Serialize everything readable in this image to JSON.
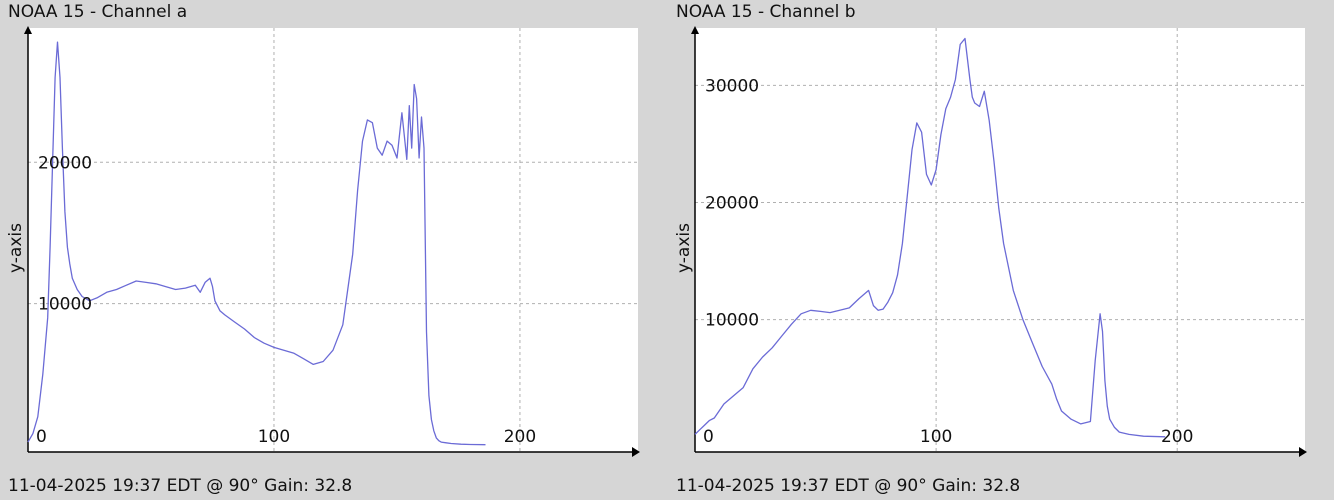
{
  "colors": {
    "background": "#d6d6d6",
    "plot_bg": "#ffffff",
    "line": "#6b6bd6",
    "grid": "#b0b0b0",
    "axis": "#000000"
  },
  "chart_data": [
    {
      "type": "line",
      "title": "NOAA 15 - Channel a",
      "xlabel": "",
      "ylabel": "y-axis",
      "footer": "11-04-2025 19:37 EDT @ 90° Gain: 32.8",
      "xlim": [
        0,
        248
      ],
      "ylim": [
        -500,
        29500
      ],
      "xticks": [
        0,
        100,
        200
      ],
      "yticks": [
        10000,
        20000
      ],
      "grid": true,
      "series": [
        {
          "x": [
            0,
            2,
            4,
            6,
            8,
            9,
            10,
            11,
            12,
            13,
            14,
            15,
            16,
            17,
            18,
            20,
            22,
            25,
            28,
            32,
            36,
            40,
            44,
            48,
            52,
            56,
            60,
            64,
            68,
            70,
            72,
            74,
            75,
            76,
            78,
            80,
            84,
            88,
            92,
            96,
            100,
            104,
            108,
            112,
            116,
            120,
            124,
            128,
            132,
            134,
            136,
            138,
            140,
            142,
            144,
            146,
            148,
            150,
            152,
            154,
            155,
            156,
            157,
            158,
            159,
            160,
            161,
            162,
            163,
            164,
            165,
            166,
            167,
            168,
            170,
            172,
            176,
            180,
            186
          ],
          "y": [
            200,
            800,
            2000,
            5000,
            9000,
            14000,
            20000,
            26000,
            28500,
            26000,
            21000,
            16500,
            14000,
            12800,
            11800,
            11000,
            10500,
            10200,
            10400,
            10800,
            11000,
            11300,
            11600,
            11500,
            11400,
            11200,
            11000,
            11100,
            11300,
            10800,
            11500,
            11800,
            11200,
            10200,
            9500,
            9200,
            8700,
            8200,
            7600,
            7200,
            6900,
            6700,
            6500,
            6100,
            5700,
            5900,
            6700,
            8500,
            13500,
            18000,
            21500,
            23000,
            22800,
            21000,
            20500,
            21500,
            21200,
            20300,
            23500,
            20200,
            24000,
            21000,
            25500,
            24500,
            20300,
            23200,
            21000,
            8000,
            3500,
            1800,
            1000,
            500,
            300,
            200,
            150,
            100,
            50,
            30,
            20
          ]
        }
      ]
    },
    {
      "type": "line",
      "title": "NOAA 15 - Channel b",
      "xlabel": "",
      "ylabel": "y-axis",
      "footer": "11-04-2025 19:37 EDT @ 90° Gain: 32.8",
      "xlim": [
        0,
        253
      ],
      "ylim": [
        -1300,
        34900
      ],
      "xticks": [
        0,
        100,
        200
      ],
      "yticks": [
        10000,
        20000,
        30000
      ],
      "grid": true,
      "series": [
        {
          "x": [
            0,
            2,
            4,
            6,
            8,
            10,
            12,
            16,
            20,
            24,
            28,
            32,
            36,
            40,
            44,
            48,
            52,
            56,
            60,
            64,
            68,
            72,
            74,
            76,
            78,
            80,
            82,
            84,
            86,
            88,
            90,
            92,
            94,
            96,
            98,
            100,
            102,
            104,
            106,
            108,
            110,
            112,
            114,
            115,
            116,
            118,
            120,
            122,
            124,
            126,
            128,
            132,
            136,
            140,
            144,
            148,
            150,
            152,
            156,
            160,
            164,
            166,
            168,
            169,
            170,
            171,
            172,
            174,
            176,
            180,
            186,
            195
          ],
          "y": [
            200,
            600,
            1000,
            1400,
            1600,
            2200,
            2800,
            3500,
            4200,
            5800,
            6800,
            7600,
            8600,
            9600,
            10500,
            10800,
            10700,
            10600,
            10800,
            11000,
            11800,
            12500,
            11200,
            10800,
            10900,
            11500,
            12300,
            13800,
            16500,
            20500,
            24500,
            26800,
            26000,
            22400,
            21500,
            22800,
            25800,
            28000,
            29000,
            30500,
            33500,
            34000,
            30500,
            29000,
            28500,
            28200,
            29500,
            27000,
            23500,
            19500,
            16500,
            12500,
            10000,
            8000,
            6000,
            4500,
            3200,
            2200,
            1500,
            1100,
            1300,
            6500,
            10500,
            9000,
            4800,
            2600,
            1500,
            800,
            400,
            200,
            50,
            0
          ]
        }
      ]
    }
  ]
}
